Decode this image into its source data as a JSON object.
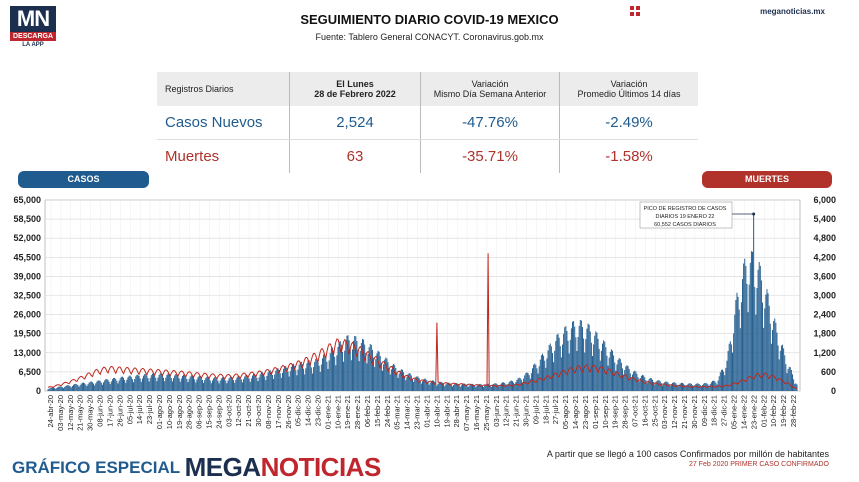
{
  "logo": {
    "mn": "MN",
    "descarga": "DESCARGA",
    "app": "LA APP"
  },
  "header": {
    "title": "SEGUIMIENTO DIARIO COVID-19 MEXICO",
    "source": "Fuente: Tablero General CONACYT. Coronavirus.gob.mx",
    "site": "meganoticias.mx"
  },
  "table": {
    "headers": [
      "Registros Diarios",
      "El Lunes",
      "28 de Febrero 2022",
      "Variación",
      "Mismo Día Semana Anterior",
      "Variación",
      "Promedio Últimos 14 días"
    ],
    "rows": [
      {
        "label": "Casos Nuevos",
        "value": "2,524",
        "var_week": "-47.76%",
        "var_14": "-2.49%"
      },
      {
        "label": "Muertes",
        "value": "63",
        "var_week": "-35.71%",
        "var_14": "-1.58%"
      }
    ]
  },
  "legend": {
    "casos": "CASOS",
    "muertes": "MUERTES"
  },
  "annotation": [
    "PICO DE REGISTRO DE CASOS",
    "DIARIOS 19 ENERO 22",
    "60,552 CASOS DIARIOS"
  ],
  "footer": {
    "grafico": "GRÁFICO ESPECIAL",
    "brand_a": "MEGA",
    "brand_b": "NOTICIAS",
    "note1": "A partir que se llegó a 100 casos Confirmados por millón de habitantes",
    "note2": "27 Feb 2020 PRIMER CASO CONFIRMADO"
  },
  "colors": {
    "casos": "#1f5b8e",
    "muertes": "#c0281f",
    "dark": "#1c2f4f"
  },
  "chart_data": {
    "type": "bar",
    "title": "",
    "ylim_left": [
      0,
      65000
    ],
    "ylim_right": [
      0,
      6000
    ],
    "yticks_left": [
      "0",
      "6,500",
      "13,000",
      "19,500",
      "26,000",
      "32,500",
      "39,000",
      "45,500",
      "52,000",
      "58,500",
      "65,000"
    ],
    "yticks_right": [
      "0",
      "600",
      "1,200",
      "1,800",
      "2,400",
      "3,000",
      "3,600",
      "4,200",
      "4,800",
      "5,400",
      "6,000"
    ],
    "x_labels": [
      "24-abr-20",
      "03-may-20",
      "12-may-20",
      "21-may-20",
      "30-may-20",
      "08-jun-20",
      "17-jun-20",
      "26-jun-20",
      "05-jul-20",
      "14-jul-20",
      "23-jul-20",
      "01-ago-20",
      "10-ago-20",
      "19-ago-20",
      "28-ago-20",
      "06-sep-20",
      "15-sep-20",
      "24-sep-20",
      "03-oct-20",
      "12-oct-20",
      "21-oct-20",
      "30-oct-20",
      "08-nov-20",
      "17-nov-20",
      "26-nov-20",
      "05-dic-20",
      "14-dic-20",
      "23-dic-20",
      "01-ene-21",
      "10-ene-21",
      "19-ene-21",
      "28-ene-21",
      "06-feb-21",
      "15-feb-21",
      "24-feb-21",
      "05-mar-21",
      "14-mar-21",
      "23-mar-21",
      "01-abr-21",
      "10-abr-21",
      "19-abr-21",
      "28-abr-21",
      "07-may-21",
      "16-may-21",
      "25-may-21",
      "03-jun-21",
      "12-jun-21",
      "21-jun-21",
      "30-jun-21",
      "09-jul-21",
      "18-jul-21",
      "27-jul-21",
      "05-ago-21",
      "14-ago-21",
      "23-ago-21",
      "01-sep-21",
      "10-sep-21",
      "19-sep-21",
      "28-sep-21",
      "07-oct-21",
      "16-oct-21",
      "25-oct-21",
      "03-nov-21",
      "12-nov-21",
      "21-nov-21",
      "30-nov-21",
      "09-dic-21",
      "18-dic-21",
      "27-dic-21",
      "05-ene-22",
      "14-ene-22",
      "23-ene-22",
      "01-feb-22",
      "10-feb-22",
      "19-feb-22",
      "28-feb-22"
    ],
    "series": [
      {
        "name": "Casos",
        "axis": "left",
        "values": [
          1000,
          1500,
          2000,
          2600,
          3100,
          3600,
          4200,
          4700,
          5200,
          5600,
          5900,
          6100,
          6000,
          5800,
          5500,
          5200,
          4900,
          4700,
          4800,
          5100,
          5600,
          6100,
          6900,
          7800,
          8800,
          9800,
          10500,
          11200,
          13500,
          16500,
          19200,
          18800,
          17000,
          14000,
          11000,
          8200,
          6400,
          5000,
          4000,
          3300,
          2900,
          2700,
          2500,
          2400,
          2500,
          2700,
          3200,
          4200,
          6500,
          10500,
          15000,
          19500,
          22800,
          24800,
          23500,
          20000,
          16000,
          12000,
          8800,
          6400,
          4800,
          3800,
          3200,
          2900,
          2700,
          2600,
          2800,
          4000,
          11500,
          34000,
          49000,
          47000,
          35000,
          22000,
          11000,
          2524
        ]
      },
      {
        "name": "Muertes",
        "axis": "right",
        "values": [
          120,
          200,
          300,
          420,
          560,
          700,
          780,
          760,
          740,
          720,
          700,
          680,
          660,
          640,
          610,
          580,
          550,
          530,
          520,
          540,
          580,
          620,
          680,
          760,
          840,
          940,
          1080,
          1250,
          1450,
          1650,
          1600,
          1450,
          1250,
          1050,
          850,
          650,
          480,
          380,
          320,
          280,
          260,
          240,
          220,
          200,
          190,
          180,
          190,
          220,
          290,
          380,
          480,
          580,
          700,
          800,
          830,
          800,
          720,
          600,
          480,
          380,
          300,
          250,
          210,
          180,
          160,
          150,
          150,
          160,
          190,
          280,
          420,
          560,
          560,
          440,
          280,
          63
        ]
      }
    ]
  }
}
